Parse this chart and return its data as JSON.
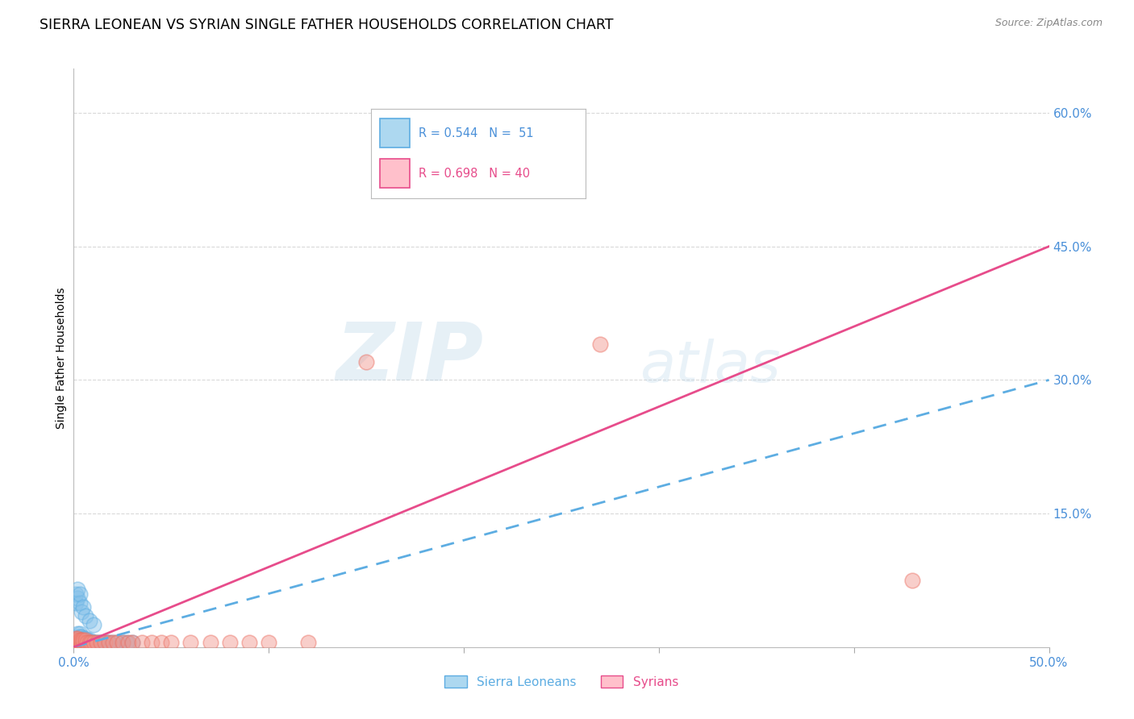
{
  "title": "SIERRA LEONEAN VS SYRIAN SINGLE FATHER HOUSEHOLDS CORRELATION CHART",
  "source": "Source: ZipAtlas.com",
  "ylabel": "Single Father Households",
  "xlim": [
    0.0,
    0.5
  ],
  "ylim": [
    0.0,
    0.65
  ],
  "xticks": [
    0.0,
    0.1,
    0.2,
    0.3,
    0.4,
    0.5
  ],
  "xticklabels": [
    "0.0%",
    "",
    "",
    "",
    "",
    "50.0%"
  ],
  "ytick_vals": [
    0.15,
    0.3,
    0.45,
    0.6
  ],
  "yticklabels": [
    "15.0%",
    "30.0%",
    "45.0%",
    "60.0%"
  ],
  "background_color": "#ffffff",
  "watermark_zip": "ZIP",
  "watermark_atlas": "atlas",
  "tick_color": "#4a90d9",
  "grid_color": "#d0d0d0",
  "sierra_leonean": {
    "scatter_color": "#85c1e9",
    "scatter_edge": "#5dade2",
    "line_color": "#5dade2",
    "R": 0.544,
    "N": 51,
    "line_slope": 0.6,
    "scatter_x": [
      0.001,
      0.001,
      0.001,
      0.002,
      0.002,
      0.002,
      0.002,
      0.002,
      0.003,
      0.003,
      0.003,
      0.003,
      0.004,
      0.004,
      0.004,
      0.005,
      0.005,
      0.005,
      0.006,
      0.006,
      0.006,
      0.007,
      0.007,
      0.008,
      0.008,
      0.009,
      0.01,
      0.011,
      0.012,
      0.013,
      0.014,
      0.015,
      0.016,
      0.017,
      0.018,
      0.02,
      0.022,
      0.025,
      0.027,
      0.03,
      0.001,
      0.001,
      0.002,
      0.002,
      0.003,
      0.003,
      0.004,
      0.005,
      0.006,
      0.008,
      0.01
    ],
    "scatter_y": [
      0.005,
      0.008,
      0.01,
      0.005,
      0.008,
      0.01,
      0.012,
      0.015,
      0.005,
      0.008,
      0.012,
      0.015,
      0.005,
      0.008,
      0.012,
      0.005,
      0.008,
      0.01,
      0.005,
      0.008,
      0.01,
      0.005,
      0.008,
      0.005,
      0.008,
      0.005,
      0.005,
      0.005,
      0.005,
      0.005,
      0.005,
      0.005,
      0.005,
      0.005,
      0.005,
      0.005,
      0.005,
      0.005,
      0.005,
      0.005,
      0.05,
      0.06,
      0.055,
      0.065,
      0.05,
      0.06,
      0.04,
      0.045,
      0.035,
      0.03,
      0.025
    ]
  },
  "syrian": {
    "scatter_color": "#f1948a",
    "scatter_edge": "#ec7063",
    "line_color": "#e74c8b",
    "R": 0.698,
    "N": 40,
    "line_slope": 0.9,
    "scatter_x": [
      0.001,
      0.001,
      0.001,
      0.002,
      0.002,
      0.002,
      0.003,
      0.003,
      0.004,
      0.004,
      0.005,
      0.005,
      0.006,
      0.006,
      0.007,
      0.008,
      0.009,
      0.01,
      0.012,
      0.014,
      0.016,
      0.018,
      0.02,
      0.022,
      0.025,
      0.028,
      0.03,
      0.035,
      0.04,
      0.045,
      0.05,
      0.06,
      0.07,
      0.08,
      0.09,
      0.1,
      0.12,
      0.27,
      0.43,
      0.15
    ],
    "scatter_y": [
      0.005,
      0.008,
      0.01,
      0.005,
      0.008,
      0.01,
      0.005,
      0.008,
      0.005,
      0.008,
      0.005,
      0.008,
      0.005,
      0.008,
      0.005,
      0.005,
      0.005,
      0.005,
      0.005,
      0.005,
      0.005,
      0.005,
      0.005,
      0.005,
      0.005,
      0.005,
      0.005,
      0.005,
      0.005,
      0.005,
      0.005,
      0.005,
      0.005,
      0.005,
      0.005,
      0.005,
      0.005,
      0.34,
      0.075,
      0.32
    ]
  },
  "title_fontsize": 12.5,
  "tick_fontsize": 11,
  "axis_label_fontsize": 10
}
